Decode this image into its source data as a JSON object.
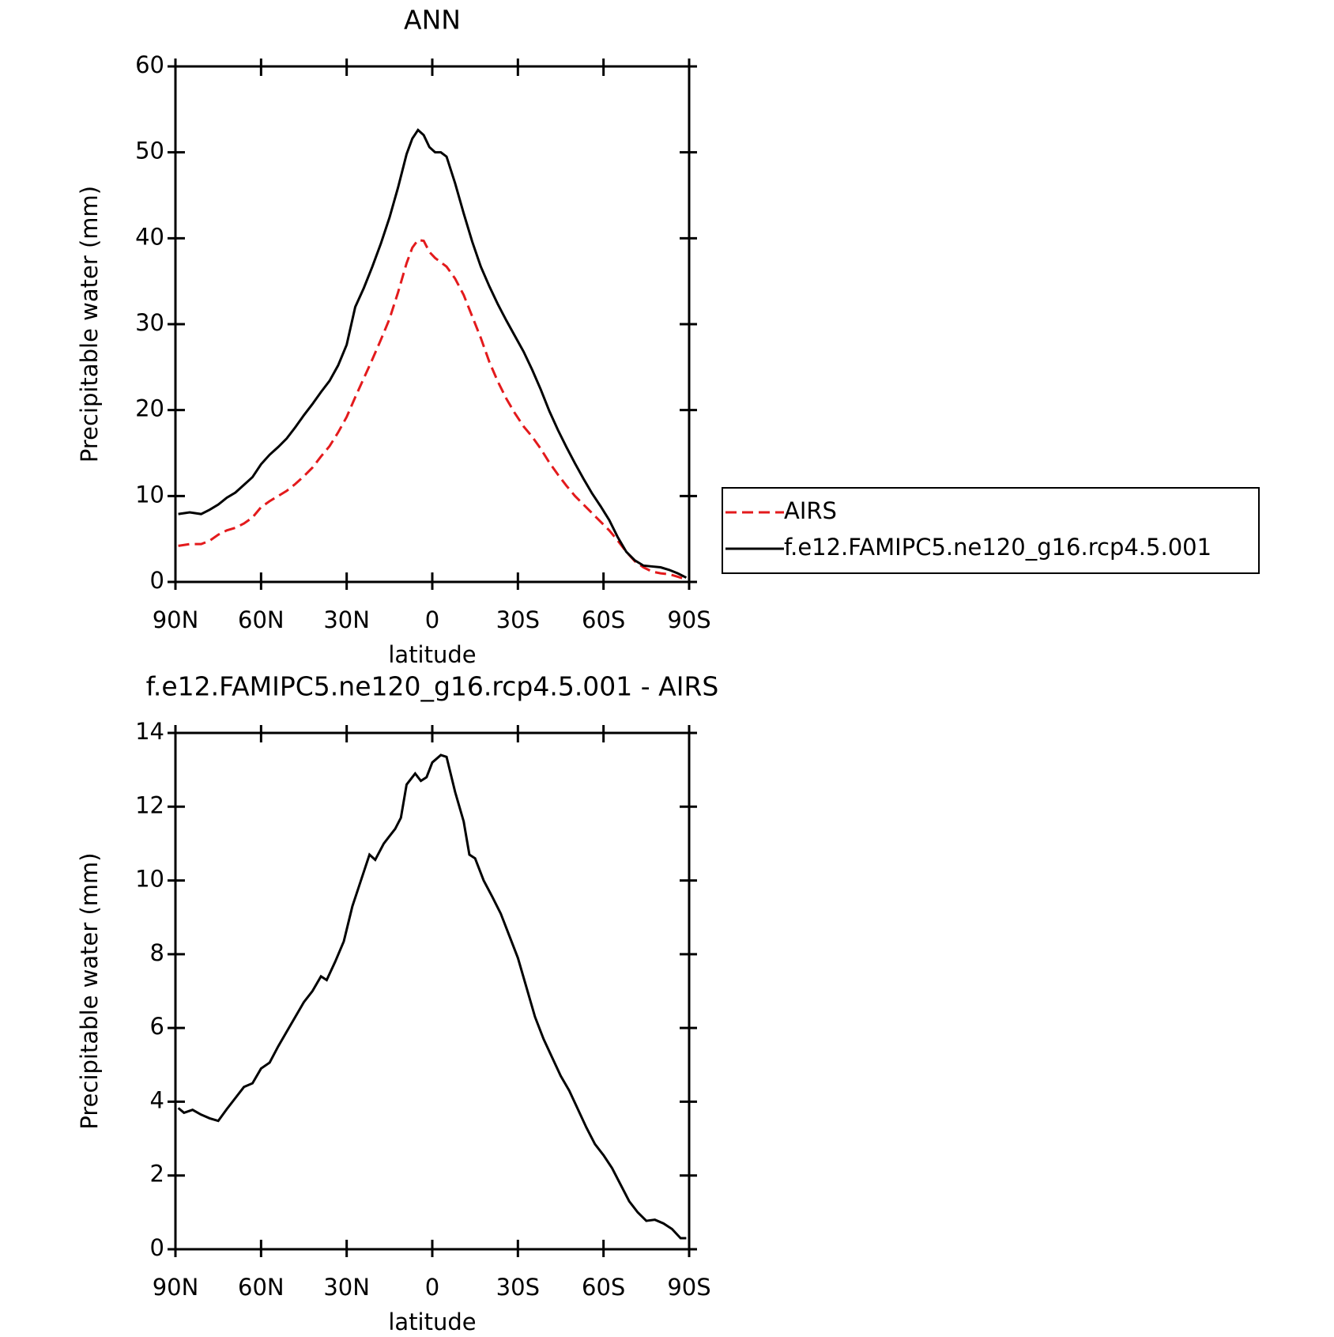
{
  "chart_data": [
    {
      "type": "line",
      "title": "ANN",
      "xlabel": "latitude",
      "ylabel": "Precipitable water (mm)",
      "x": [
        89,
        85,
        81,
        78,
        75,
        72,
        69,
        66,
        63,
        60,
        57,
        54,
        51,
        48,
        45,
        42,
        39,
        36,
        33,
        30,
        27,
        24,
        21,
        18,
        15,
        12,
        9,
        7,
        5,
        3,
        1,
        -1,
        -3,
        -5,
        -8,
        -11,
        -14,
        -17,
        -20,
        -23,
        -26,
        -29,
        -32,
        -35,
        -38,
        -41,
        -44,
        -47,
        -50,
        -53,
        -56,
        -59,
        -62,
        -65,
        -68,
        -71,
        -74,
        -77,
        -80,
        -83,
        -86,
        -89
      ],
      "series": [
        {
          "name": "AIRS",
          "color": "#e31a1c",
          "dash": true,
          "values": [
            4.2,
            4.4,
            4.4,
            4.8,
            5.5,
            6.0,
            6.3,
            6.8,
            7.5,
            8.7,
            9.4,
            10.0,
            10.6,
            11.4,
            12.3,
            13.3,
            14.6,
            15.8,
            17.4,
            19.2,
            21.5,
            23.7,
            25.9,
            28.2,
            30.6,
            33.7,
            37.1,
            38.9,
            39.8,
            39.7,
            38.4,
            37.7,
            37.2,
            36.7,
            35.3,
            33.4,
            30.9,
            28.4,
            25.6,
            23.3,
            21.3,
            19.6,
            18.1,
            16.9,
            15.5,
            13.9,
            12.5,
            11.2,
            10.0,
            9.0,
            8.0,
            7.0,
            6.0,
            4.8,
            3.5,
            2.4,
            1.7,
            1.2,
            1.0,
            0.9,
            0.6,
            0.3
          ]
        },
        {
          "name": "f.e12.FAMIPC5.ne120_g16.rcp4.5.001",
          "color": "#000000",
          "dash": false,
          "values": [
            7.9,
            8.1,
            7.9,
            8.4,
            9.0,
            9.8,
            10.4,
            11.3,
            12.2,
            13.7,
            14.8,
            15.7,
            16.7,
            18.0,
            19.4,
            20.7,
            22.1,
            23.4,
            25.2,
            27.6,
            32.0,
            34.2,
            36.7,
            39.4,
            42.4,
            45.9,
            49.8,
            51.6,
            52.6,
            52.0,
            50.6,
            50.0,
            50.0,
            49.5,
            46.4,
            42.9,
            39.6,
            36.7,
            34.4,
            32.3,
            30.4,
            28.6,
            26.8,
            24.7,
            22.4,
            19.9,
            17.7,
            15.7,
            13.8,
            12.0,
            10.3,
            8.8,
            7.2,
            5.2,
            3.5,
            2.5,
            1.9,
            1.8,
            1.7,
            1.4,
            1.0,
            0.5
          ]
        }
      ],
      "xlim": [
        90,
        -90
      ],
      "xticks": [
        {
          "value": 90,
          "label": "90N"
        },
        {
          "value": 60,
          "label": "60N"
        },
        {
          "value": 30,
          "label": "30N"
        },
        0,
        {
          "value": -30,
          "label": "30S"
        },
        {
          "value": -60,
          "label": "60S"
        },
        {
          "value": -90,
          "label": "90S"
        }
      ],
      "ylim": [
        0,
        60
      ],
      "yticks": [
        0,
        10,
        20,
        30,
        40,
        50,
        60
      ],
      "legend": "right"
    },
    {
      "type": "line",
      "title": "f.e12.FAMIPC5.ne120_g16.rcp4.5.001 - AIRS",
      "xlabel": "latitude",
      "ylabel": "Precipitable water (mm)",
      "x": [
        89,
        87,
        84,
        81,
        78,
        75,
        72,
        69,
        66,
        63,
        60,
        57,
        54,
        51,
        48,
        45,
        42,
        39,
        37,
        34,
        31,
        28,
        25,
        22,
        20,
        17,
        15,
        13,
        11,
        9,
        6,
        4,
        2,
        0,
        -3,
        -5,
        -8,
        -11,
        -13,
        -15,
        -18,
        -21,
        -24,
        -27,
        -30,
        -33,
        -36,
        -39,
        -42,
        -45,
        -48,
        -51,
        -54,
        -57,
        -60,
        -63,
        -66,
        -69,
        -72,
        -75,
        -78,
        -81,
        -84,
        -87,
        -89
      ],
      "series": [
        {
          "color": "#000000",
          "dash": false,
          "values": [
            3.83,
            3.7,
            3.78,
            3.65,
            3.55,
            3.48,
            3.8,
            4.1,
            4.4,
            4.5,
            4.9,
            5.06,
            5.5,
            5.9,
            6.3,
            6.7,
            7.0,
            7.4,
            7.3,
            7.8,
            8.35,
            9.3,
            10.0,
            10.7,
            10.56,
            11.0,
            11.2,
            11.4,
            11.7,
            12.6,
            12.9,
            12.7,
            12.8,
            13.2,
            13.4,
            13.35,
            12.4,
            11.6,
            10.7,
            10.6,
            10.0,
            9.56,
            9.1,
            8.5,
            7.9,
            7.1,
            6.3,
            5.7,
            5.2,
            4.7,
            4.3,
            3.8,
            3.3,
            2.85,
            2.55,
            2.2,
            1.75,
            1.3,
            1.0,
            0.77,
            0.8,
            0.7,
            0.55,
            0.3,
            0.3
          ]
        }
      ],
      "xlim": [
        90,
        -90
      ],
      "xticks": [
        {
          "value": 90,
          "label": "90N"
        },
        {
          "value": 60,
          "label": "60N"
        },
        {
          "value": 30,
          "label": "30N"
        },
        0,
        {
          "value": -30,
          "label": "30S"
        },
        {
          "value": -60,
          "label": "60S"
        },
        {
          "value": -90,
          "label": "90S"
        }
      ],
      "ylim": [
        0,
        14
      ],
      "yticks": [
        0,
        2,
        4,
        6,
        8,
        10,
        12,
        14
      ]
    }
  ]
}
